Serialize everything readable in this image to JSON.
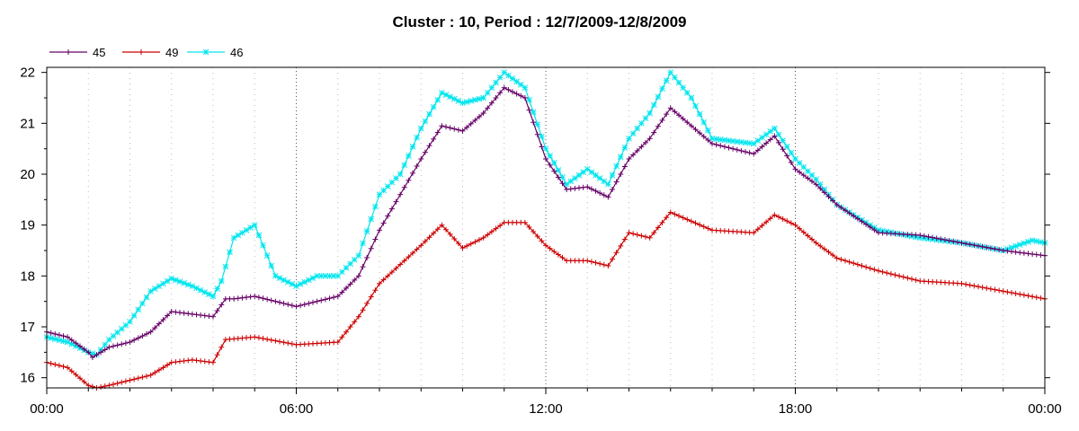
{
  "chart_data": {
    "type": "line",
    "title": "Cluster : 10, Period : 12/7/2009-12/8/2009",
    "xlabel": "",
    "ylabel": "",
    "x_ticks": [
      "00:00",
      "06:00",
      "12:00",
      "18:00",
      "00:00"
    ],
    "x_range_hours": [
      0,
      24
    ],
    "ylim": [
      15.8,
      22.1
    ],
    "y_ticks": [
      16,
      17,
      18,
      19,
      20,
      21,
      22
    ],
    "grid": "dotted",
    "legend_position": "top-left",
    "series": [
      {
        "name": "45",
        "color": "#660066",
        "marker": "plus",
        "x": [
          0,
          0.5,
          1,
          1.1,
          1.5,
          2,
          2.5,
          3,
          3.5,
          4,
          4.3,
          4.5,
          5,
          6,
          7,
          7.5,
          8,
          9,
          9.5,
          10,
          10.5,
          11,
          11.5,
          12,
          12.5,
          13,
          13.5,
          14,
          14.5,
          15,
          16,
          17,
          17.5,
          18,
          18.5,
          19,
          20,
          21,
          22,
          23,
          24
        ],
        "values": [
          16.9,
          16.8,
          16.5,
          16.4,
          16.6,
          16.7,
          16.9,
          17.3,
          17.25,
          17.2,
          17.55,
          17.55,
          17.6,
          17.4,
          17.6,
          18.0,
          18.9,
          20.3,
          20.95,
          20.85,
          21.2,
          21.7,
          21.5,
          20.3,
          19.7,
          19.75,
          19.55,
          20.3,
          20.7,
          21.3,
          20.6,
          20.4,
          20.75,
          20.1,
          19.8,
          19.4,
          18.85,
          18.8,
          18.65,
          18.5,
          18.4
        ]
      },
      {
        "name": "49",
        "color": "#cc0000",
        "marker": "plus",
        "x": [
          0,
          0.5,
          1,
          1.2,
          1.5,
          2,
          2.5,
          3,
          3.5,
          4,
          4.3,
          5,
          6,
          7,
          7.5,
          8,
          9,
          9.5,
          10,
          10.5,
          11,
          11.5,
          12,
          12.5,
          13,
          13.5,
          14,
          14.5,
          15,
          16,
          17,
          17.5,
          18,
          18.5,
          19,
          20,
          21,
          22,
          23,
          24
        ],
        "values": [
          16.3,
          16.2,
          15.85,
          15.8,
          15.85,
          15.95,
          16.05,
          16.3,
          16.35,
          16.3,
          16.75,
          16.8,
          16.65,
          16.7,
          17.2,
          17.85,
          18.6,
          19.0,
          18.55,
          18.75,
          19.05,
          19.05,
          18.6,
          18.3,
          18.3,
          18.2,
          18.85,
          18.75,
          19.25,
          18.9,
          18.85,
          19.2,
          19.0,
          18.65,
          18.35,
          18.1,
          17.9,
          17.85,
          17.7,
          17.55
        ]
      },
      {
        "name": "46",
        "color": "#00e5ee",
        "marker": "star",
        "x": [
          0,
          0.5,
          1,
          1.2,
          1.5,
          2,
          2.5,
          3,
          3.5,
          4,
          4.2,
          4.5,
          5,
          5.5,
          6,
          6.5,
          7,
          7.5,
          8,
          8.5,
          9,
          9.5,
          10,
          10.5,
          11,
          11.5,
          12,
          12.5,
          13,
          13.5,
          14,
          14.5,
          15,
          15.5,
          16,
          17,
          17.5,
          18,
          18.5,
          19,
          20,
          21,
          22,
          23,
          23.7,
          24
        ],
        "values": [
          16.8,
          16.7,
          16.5,
          16.45,
          16.75,
          17.1,
          17.7,
          17.95,
          17.8,
          17.6,
          17.9,
          18.75,
          19.0,
          18.0,
          17.8,
          18.0,
          18.0,
          18.4,
          19.6,
          20.0,
          20.9,
          21.6,
          21.4,
          21.5,
          22.0,
          21.7,
          20.5,
          19.8,
          20.1,
          19.8,
          20.7,
          21.2,
          22.0,
          21.5,
          20.7,
          20.6,
          20.9,
          20.3,
          19.9,
          19.4,
          18.9,
          18.75,
          18.65,
          18.5,
          18.7,
          18.65
        ]
      }
    ]
  }
}
